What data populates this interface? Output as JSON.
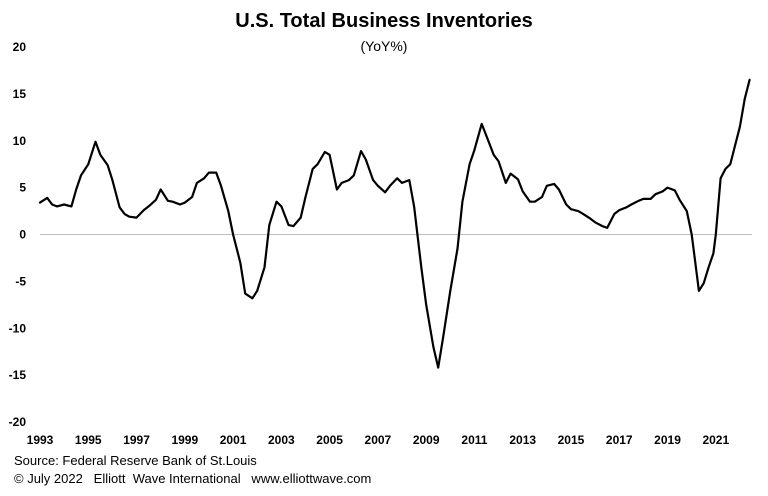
{
  "chart_data": {
    "type": "line",
    "title": "U.S. Total Business Inventories",
    "subtitle": "(YoY%)",
    "xlabel": "",
    "ylabel": "",
    "xlim": [
      1993,
      2022.5
    ],
    "ylim": [
      -20,
      20
    ],
    "yticks": [
      20,
      15,
      10,
      5,
      0,
      -5,
      -10,
      -15,
      -20
    ],
    "xticks": [
      "1993",
      "1995",
      "1997",
      "1999",
      "2001",
      "2003",
      "2005",
      "2007",
      "2009",
      "2011",
      "2013",
      "2015",
      "2017",
      "2019",
      "2021"
    ],
    "grid": false,
    "zero_line": true,
    "series": [
      {
        "color": "#000000",
        "x": [
          1993.0,
          1993.3,
          1993.5,
          1993.7,
          1994.0,
          1994.3,
          1994.5,
          1994.7,
          1995.0,
          1995.3,
          1995.5,
          1995.8,
          1996.0,
          1996.3,
          1996.5,
          1996.7,
          1997.0,
          1997.3,
          1997.5,
          1997.8,
          1998.0,
          1998.3,
          1998.5,
          1998.8,
          1999.0,
          1999.3,
          1999.5,
          1999.8,
          2000.0,
          2000.3,
          2000.5,
          2000.8,
          2001.0,
          2001.3,
          2001.5,
          2001.8,
          2002.0,
          2002.3,
          2002.5,
          2002.8,
          2003.0,
          2003.3,
          2003.5,
          2003.8,
          2004.0,
          2004.3,
          2004.5,
          2004.8,
          2005.0,
          2005.3,
          2005.5,
          2005.8,
          2006.0,
          2006.3,
          2006.5,
          2006.8,
          2007.0,
          2007.3,
          2007.5,
          2007.8,
          2008.0,
          2008.3,
          2008.5,
          2008.8,
          2009.0,
          2009.3,
          2009.5,
          2009.7,
          2010.0,
          2010.3,
          2010.5,
          2010.8,
          2011.0,
          2011.3,
          2011.5,
          2011.8,
          2012.0,
          2012.3,
          2012.5,
          2012.8,
          2013.0,
          2013.3,
          2013.5,
          2013.8,
          2014.0,
          2014.3,
          2014.5,
          2014.8,
          2015.0,
          2015.3,
          2015.5,
          2015.8,
          2016.0,
          2016.3,
          2016.5,
          2016.8,
          2017.0,
          2017.3,
          2017.5,
          2017.8,
          2018.0,
          2018.3,
          2018.5,
          2018.8,
          2019.0,
          2019.3,
          2019.5,
          2019.8,
          2020.0,
          2020.2,
          2020.3,
          2020.5,
          2020.7,
          2020.9,
          2021.0,
          2021.2,
          2021.4,
          2021.6,
          2021.8,
          2022.0,
          2022.2,
          2022.4
        ],
        "y": [
          3.4,
          3.9,
          3.2,
          3.0,
          3.2,
          3.0,
          4.8,
          6.3,
          7.5,
          9.9,
          8.5,
          7.4,
          5.8,
          2.9,
          2.2,
          1.9,
          1.8,
          2.6,
          3.0,
          3.7,
          4.8,
          3.6,
          3.5,
          3.2,
          3.4,
          4.0,
          5.5,
          6.0,
          6.6,
          6.6,
          5.2,
          2.5,
          0.0,
          -3.0,
          -6.3,
          -6.8,
          -6.0,
          -3.5,
          1.0,
          3.5,
          3.0,
          1.0,
          0.9,
          1.8,
          4.0,
          7.0,
          7.5,
          8.8,
          8.5,
          4.8,
          5.5,
          5.8,
          6.3,
          8.9,
          8.0,
          5.8,
          5.2,
          4.5,
          5.2,
          6.0,
          5.5,
          5.8,
          3.0,
          -3.5,
          -7.5,
          -12.0,
          -14.2,
          -11.0,
          -6.0,
          -1.5,
          3.5,
          7.5,
          9.0,
          11.8,
          10.5,
          8.5,
          7.8,
          5.5,
          6.5,
          5.9,
          4.6,
          3.5,
          3.5,
          4.0,
          5.2,
          5.4,
          4.8,
          3.2,
          2.7,
          2.5,
          2.2,
          1.7,
          1.3,
          0.9,
          0.7,
          2.2,
          2.6,
          2.9,
          3.2,
          3.6,
          3.8,
          3.8,
          4.3,
          4.6,
          5.0,
          4.7,
          3.7,
          2.5,
          0.0,
          -4.0,
          -6.0,
          -5.2,
          -3.5,
          -2.0,
          0.0,
          6.0,
          7.0,
          7.5,
          9.5,
          11.5,
          14.5,
          16.5
        ]
      }
    ]
  },
  "footer": {
    "source": "Source: Federal Reserve Bank of St.Louis",
    "credit": "© July 2022   Elliott  Wave International   www.elliottwave.com"
  }
}
